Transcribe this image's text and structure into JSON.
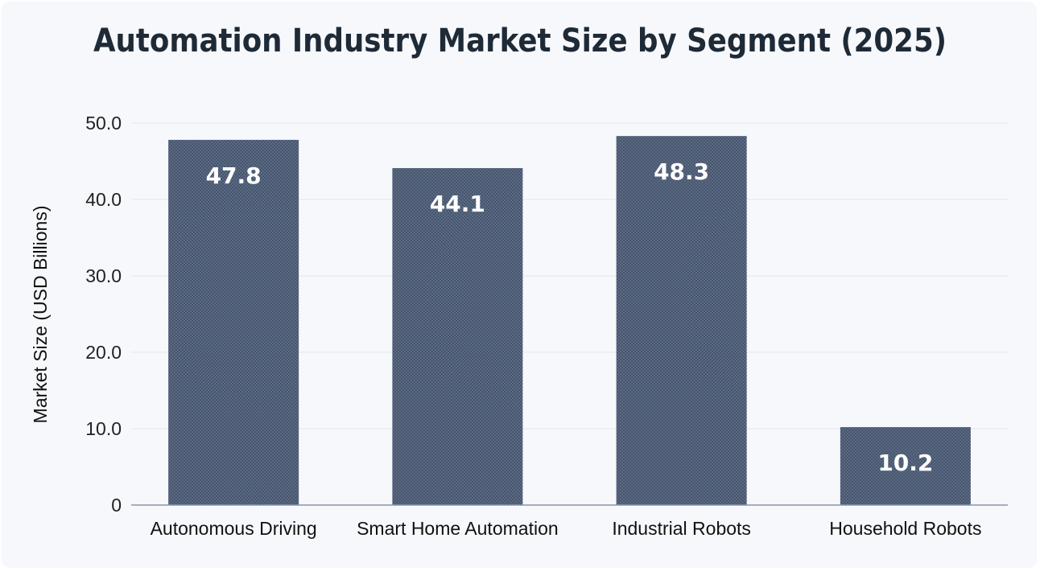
{
  "chart_data": {
    "type": "bar",
    "title": "Automation Industry Market Size by Segment (2025)",
    "xlabel": "",
    "ylabel": "Market Size (USD Billions)",
    "categories": [
      "Autonomous Driving",
      "Smart Home Automation",
      "Industrial Robots",
      "Household Robots"
    ],
    "values": [
      47.8,
      44.1,
      48.3,
      10.2
    ],
    "value_labels": [
      "47.8",
      "44.1",
      "48.3",
      "10.2"
    ],
    "ylim": [
      0,
      50
    ],
    "yticks": [
      0,
      10,
      20,
      30,
      40,
      50
    ],
    "ytick_labels": [
      "0",
      "10.0",
      "20.0",
      "30.0",
      "40.0",
      "50.0"
    ],
    "grid": true,
    "bar_color": "#5b6b85",
    "legend": "none"
  }
}
